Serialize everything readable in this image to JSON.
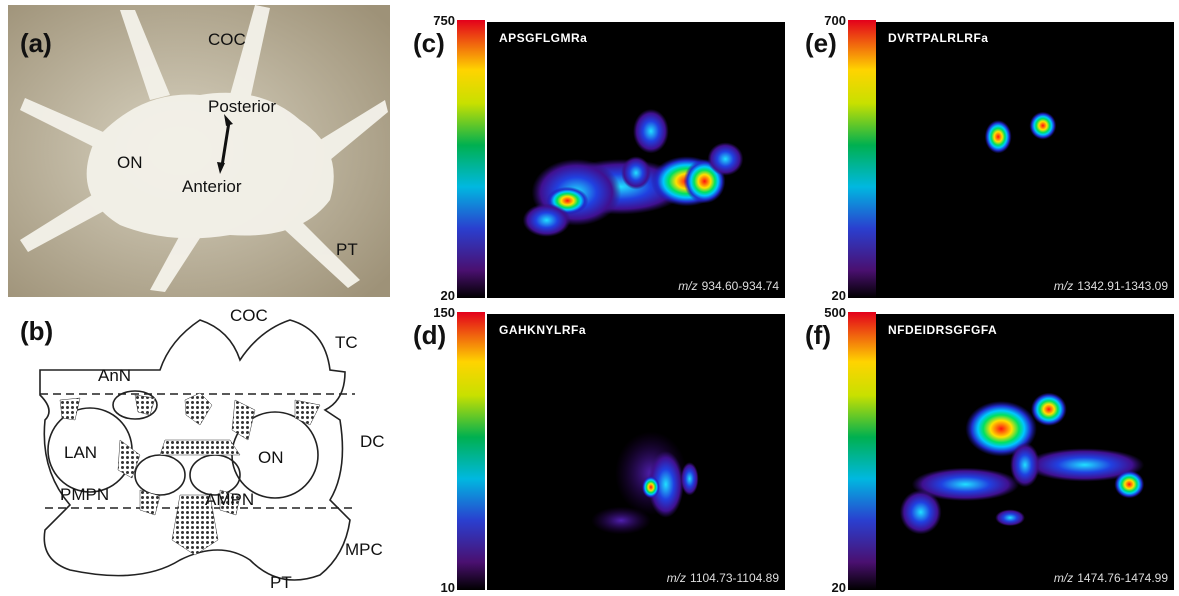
{
  "panel_a": {
    "label": "(a)",
    "annotations": [
      "COC",
      "Posterior",
      "ON",
      "Anterior",
      "PT"
    ]
  },
  "panel_b": {
    "label": "(b)",
    "annotations": [
      "COC",
      "TC",
      "AnN",
      "LAN",
      "DC",
      "ON",
      "PMPN",
      "AMPN",
      "MPC",
      "PT"
    ]
  },
  "images": [
    {
      "label": "(c)",
      "peptide": "APSGFLGMRa",
      "scale_max": 750,
      "scale_min": 20,
      "mz_prefix": "m/z",
      "mz_range": "934.60-934.74"
    },
    {
      "label": "(d)",
      "peptide": "GAHKNYLRFa",
      "scale_max": 150,
      "scale_min": 10,
      "mz_prefix": "m/z",
      "mz_range": "1104.73-1104.89"
    },
    {
      "label": "(e)",
      "peptide": "DVRTPALRLRFa",
      "scale_max": 700,
      "scale_min": 20,
      "mz_prefix": "m/z",
      "mz_range": "1342.91-1343.09"
    },
    {
      "label": "(f)",
      "peptide": "NFDEIDRSGFGFA",
      "scale_max": 500,
      "scale_min": 20,
      "mz_prefix": "m/z",
      "mz_range": "1474.76-1474.99"
    }
  ]
}
